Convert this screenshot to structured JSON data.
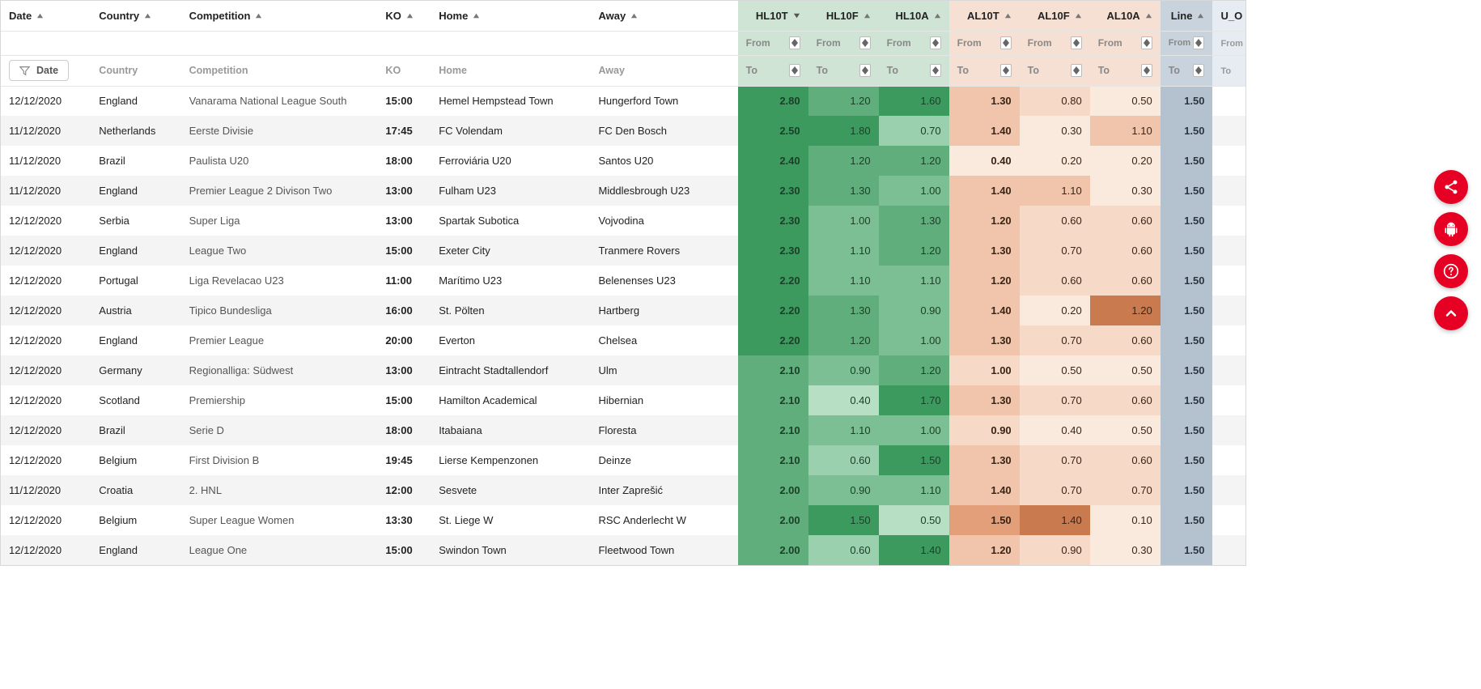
{
  "colors": {
    "green_header": "#cfe4d5",
    "orange_header": "#f6e0d3",
    "blue_header": "#c9d3dd",
    "lblue_header": "#e6ecf2",
    "fab": "#e60023",
    "green_scale": [
      "#3d9a5f",
      "#5fae7b",
      "#7cbf94",
      "#9ad0ad",
      "#b6dfc4"
    ],
    "orange_scale": [
      "#c97a4e",
      "#e29f7a",
      "#f0c5ab",
      "#f6d9c6",
      "#faeadd"
    ],
    "line_cell": "#b4c2cf"
  },
  "columns": {
    "date": "Date",
    "country": "Country",
    "competition": "Competition",
    "ko": "KO",
    "home": "Home",
    "away": "Away",
    "hl10t": "HL10T",
    "hl10f": "HL10F",
    "hl10a": "HL10A",
    "al10t": "AL10T",
    "al10f": "AL10F",
    "al10a": "AL10A",
    "line": "Line",
    "uo": "U_O"
  },
  "filters": {
    "date_btn": "Date",
    "country": "Country",
    "competition": "Competition",
    "ko": "KO",
    "home": "Home",
    "away": "Away",
    "from": "From",
    "to": "To"
  },
  "rows": [
    {
      "date": "12/12/2020",
      "country": "England",
      "comp": "Vanarama National League South",
      "ko": "15:00",
      "home": "Hemel Hempstead Town",
      "away": "Hungerford Town",
      "h": [
        2.8,
        1.2,
        1.6
      ],
      "a": [
        1.3,
        0.8,
        0.5
      ],
      "line": 1.5,
      "hs": [
        "h1",
        "h2",
        "h1"
      ],
      "as": [
        "a3",
        "a4",
        "a5"
      ]
    },
    {
      "date": "11/12/2020",
      "country": "Netherlands",
      "comp": "Eerste Divisie",
      "ko": "17:45",
      "home": "FC Volendam",
      "away": "FC Den Bosch",
      "h": [
        2.5,
        1.8,
        0.7
      ],
      "a": [
        1.4,
        0.3,
        1.1
      ],
      "line": 1.5,
      "hs": [
        "h1",
        "h1",
        "h4"
      ],
      "as": [
        "a3",
        "a5",
        "a3"
      ]
    },
    {
      "date": "11/12/2020",
      "country": "Brazil",
      "comp": "Paulista U20",
      "ko": "18:00",
      "home": "Ferroviária U20",
      "away": "Santos U20",
      "h": [
        2.4,
        1.2,
        1.2
      ],
      "a": [
        0.4,
        0.2,
        0.2
      ],
      "line": 1.5,
      "hs": [
        "h1",
        "h2",
        "h2"
      ],
      "as": [
        "a5",
        "a5",
        "a5"
      ]
    },
    {
      "date": "11/12/2020",
      "country": "England",
      "comp": "Premier League 2 Divison Two",
      "ko": "13:00",
      "home": "Fulham U23",
      "away": "Middlesbrough U23",
      "h": [
        2.3,
        1.3,
        1.0
      ],
      "a": [
        1.4,
        1.1,
        0.3
      ],
      "line": 1.5,
      "hs": [
        "h1",
        "h2",
        "h3"
      ],
      "as": [
        "a3",
        "a3",
        "a5"
      ]
    },
    {
      "date": "12/12/2020",
      "country": "Serbia",
      "comp": "Super Liga",
      "ko": "13:00",
      "home": "Spartak Subotica",
      "away": "Vojvodina",
      "h": [
        2.3,
        1.0,
        1.3
      ],
      "a": [
        1.2,
        0.6,
        0.6
      ],
      "line": 1.5,
      "hs": [
        "h1",
        "h3",
        "h2"
      ],
      "as": [
        "a3",
        "a4",
        "a4"
      ]
    },
    {
      "date": "12/12/2020",
      "country": "England",
      "comp": "League Two",
      "ko": "15:00",
      "home": "Exeter City",
      "away": "Tranmere Rovers",
      "h": [
        2.3,
        1.1,
        1.2
      ],
      "a": [
        1.3,
        0.7,
        0.6
      ],
      "line": 1.5,
      "hs": [
        "h1",
        "h3",
        "h2"
      ],
      "as": [
        "a3",
        "a4",
        "a4"
      ]
    },
    {
      "date": "12/12/2020",
      "country": "Portugal",
      "comp": "Liga Revelacao U23",
      "ko": "11:00",
      "home": "Marítimo U23",
      "away": "Belenenses U23",
      "h": [
        2.2,
        1.1,
        1.1
      ],
      "a": [
        1.2,
        0.6,
        0.6
      ],
      "line": 1.5,
      "hs": [
        "h1",
        "h3",
        "h3"
      ],
      "as": [
        "a3",
        "a4",
        "a4"
      ]
    },
    {
      "date": "12/12/2020",
      "country": "Austria",
      "comp": "Tipico Bundesliga",
      "ko": "16:00",
      "home": "St. Pölten",
      "away": "Hartberg",
      "h": [
        2.2,
        1.3,
        0.9
      ],
      "a": [
        1.4,
        0.2,
        1.2
      ],
      "line": 1.5,
      "hs": [
        "h1",
        "h2",
        "h3"
      ],
      "as": [
        "a3",
        "a5",
        "a1"
      ]
    },
    {
      "date": "12/12/2020",
      "country": "England",
      "comp": "Premier League",
      "ko": "20:00",
      "home": "Everton",
      "away": "Chelsea",
      "h": [
        2.2,
        1.2,
        1.0
      ],
      "a": [
        1.3,
        0.7,
        0.6
      ],
      "line": 1.5,
      "hs": [
        "h1",
        "h2",
        "h3"
      ],
      "as": [
        "a3",
        "a4",
        "a4"
      ]
    },
    {
      "date": "12/12/2020",
      "country": "Germany",
      "comp": "Regionalliga: Südwest",
      "ko": "13:00",
      "home": "Eintracht Stadtallendorf",
      "away": "Ulm",
      "h": [
        2.1,
        0.9,
        1.2
      ],
      "a": [
        1.0,
        0.5,
        0.5
      ],
      "line": 1.5,
      "hs": [
        "h2",
        "h3",
        "h2"
      ],
      "as": [
        "a4",
        "a5",
        "a5"
      ]
    },
    {
      "date": "12/12/2020",
      "country": "Scotland",
      "comp": "Premiership",
      "ko": "15:00",
      "home": "Hamilton Academical",
      "away": "Hibernian",
      "h": [
        2.1,
        0.4,
        1.7
      ],
      "a": [
        1.3,
        0.7,
        0.6
      ],
      "line": 1.5,
      "hs": [
        "h2",
        "h5",
        "h1"
      ],
      "as": [
        "a3",
        "a4",
        "a4"
      ]
    },
    {
      "date": "12/12/2020",
      "country": "Brazil",
      "comp": "Serie D",
      "ko": "18:00",
      "home": "Itabaiana",
      "away": "Floresta",
      "h": [
        2.1,
        1.1,
        1.0
      ],
      "a": [
        0.9,
        0.4,
        0.5
      ],
      "line": 1.5,
      "hs": [
        "h2",
        "h3",
        "h3"
      ],
      "as": [
        "a4",
        "a5",
        "a5"
      ]
    },
    {
      "date": "12/12/2020",
      "country": "Belgium",
      "comp": "First Division B",
      "ko": "19:45",
      "home": "Lierse Kempenzonen",
      "away": "Deinze",
      "h": [
        2.1,
        0.6,
        1.5
      ],
      "a": [
        1.3,
        0.7,
        0.6
      ],
      "line": 1.5,
      "hs": [
        "h2",
        "h4",
        "h1"
      ],
      "as": [
        "a3",
        "a4",
        "a4"
      ]
    },
    {
      "date": "11/12/2020",
      "country": "Croatia",
      "comp": "2. HNL",
      "ko": "12:00",
      "home": "Sesvete",
      "away": "Inter Zaprešić",
      "h": [
        2.0,
        0.9,
        1.1
      ],
      "a": [
        1.4,
        0.7,
        0.7
      ],
      "line": 1.5,
      "hs": [
        "h2",
        "h3",
        "h3"
      ],
      "as": [
        "a3",
        "a4",
        "a4"
      ]
    },
    {
      "date": "12/12/2020",
      "country": "Belgium",
      "comp": "Super League Women",
      "ko": "13:30",
      "home": "St. Liege W",
      "away": "RSC Anderlecht W",
      "h": [
        2.0,
        1.5,
        0.5
      ],
      "a": [
        1.5,
        1.4,
        0.1
      ],
      "line": 1.5,
      "hs": [
        "h2",
        "h1",
        "h5"
      ],
      "as": [
        "a2",
        "a1",
        "a5"
      ]
    },
    {
      "date": "12/12/2020",
      "country": "England",
      "comp": "League One",
      "ko": "15:00",
      "home": "Swindon Town",
      "away": "Fleetwood Town",
      "h": [
        2.0,
        0.6,
        1.4
      ],
      "a": [
        1.2,
        0.9,
        0.3
      ],
      "line": 1.5,
      "hs": [
        "h2",
        "h4",
        "h1"
      ],
      "as": [
        "a3",
        "a4",
        "a5"
      ]
    }
  ],
  "fab": {
    "share": "share-icon",
    "android": "android-icon",
    "help": "help-icon",
    "top": "arrow-up-icon"
  }
}
